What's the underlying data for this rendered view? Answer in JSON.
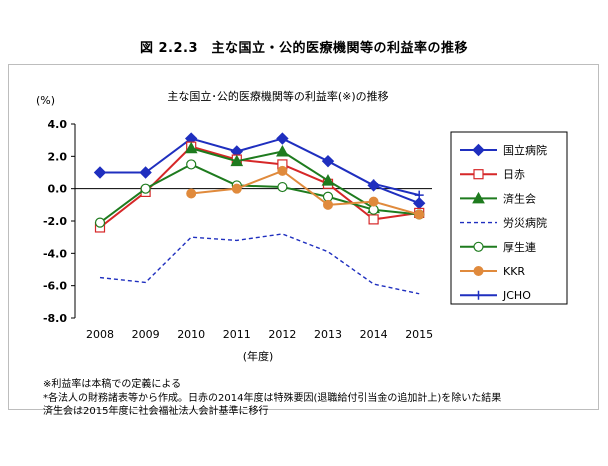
{
  "figure_title": "図 2.2.3　主な国立・公的医療機関等の利益率の推移",
  "notes": [
    "※利益率は本稿での定義による",
    "*各法人の財務諸表等から作成。日赤の2014年度は特殊要因(退職給付引当金の追加計上)を除いた結果",
    "済生会は2015年度に社会福祉法人会計基準に移行"
  ],
  "chart_data": {
    "type": "line",
    "title": "主な国立･公的医療機関等の利益率(※)の推移",
    "ylabel": "(%)",
    "xlabel": "(年度)",
    "x": [
      "2008",
      "2009",
      "2010",
      "2011",
      "2012",
      "2013",
      "2014",
      "2015"
    ],
    "ylim": [
      -8.0,
      4.0
    ],
    "yticks": [
      "4.0",
      "2.0",
      "0.0",
      "-2.0",
      "-4.0",
      "-6.0",
      "-8.0"
    ],
    "grid": false,
    "legend_position": "right",
    "series": [
      {
        "name": "国立病院",
        "color": "#1f2fbf",
        "marker": "diamond-filled",
        "dash": false,
        "values": [
          1.0,
          1.0,
          3.1,
          2.3,
          3.1,
          1.7,
          0.2,
          -0.9
        ]
      },
      {
        "name": "日赤",
        "color": "#d62728",
        "marker": "square-open",
        "dash": false,
        "values": [
          -2.4,
          -0.2,
          2.6,
          1.8,
          1.5,
          0.3,
          -1.9,
          -1.5
        ]
      },
      {
        "name": "済生会",
        "color": "#1e7b1e",
        "marker": "triangle-filled",
        "dash": false,
        "values": [
          null,
          null,
          2.5,
          1.7,
          2.3,
          0.5,
          -1.2,
          null
        ]
      },
      {
        "name": "労災病院",
        "color": "#1f2fbf",
        "marker": "none",
        "dash": true,
        "values": [
          -5.5,
          -5.8,
          -3.0,
          -3.2,
          -2.8,
          -3.9,
          -5.9,
          -6.5
        ]
      },
      {
        "name": "厚生連",
        "color": "#1e7b1e",
        "marker": "circle-open",
        "dash": false,
        "values": [
          -2.1,
          0.0,
          1.5,
          0.2,
          0.1,
          -0.5,
          -1.3,
          -1.6
        ]
      },
      {
        "name": "KKR",
        "color": "#e08a3c",
        "marker": "circle-filled",
        "dash": false,
        "values": [
          null,
          null,
          -0.3,
          0.0,
          1.1,
          -1.0,
          -0.8,
          -1.6
        ]
      },
      {
        "name": "JCHO",
        "color": "#1f2fbf",
        "marker": "plus",
        "dash": false,
        "values": [
          null,
          null,
          null,
          null,
          null,
          null,
          0.3,
          -0.4
        ]
      }
    ]
  }
}
